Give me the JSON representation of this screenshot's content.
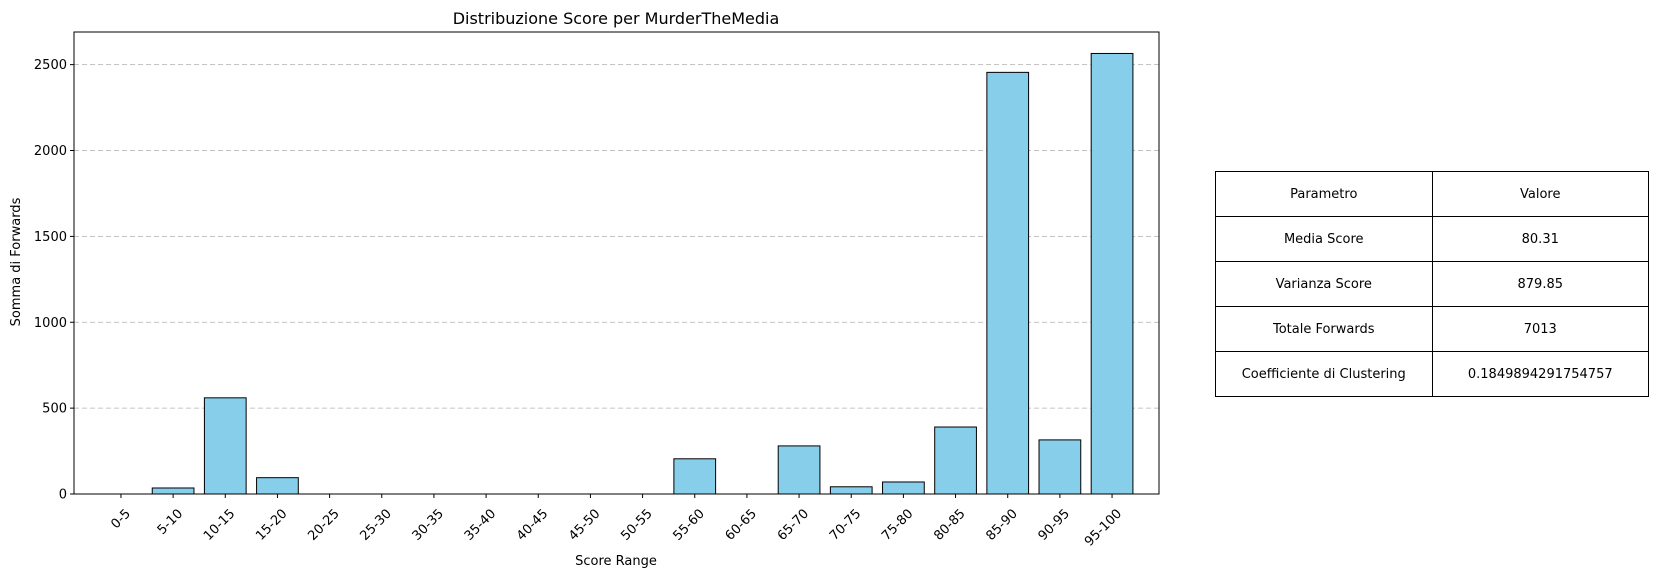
{
  "chart_data": {
    "type": "bar",
    "title": "Distribuzione Score per MurderTheMedia",
    "xlabel": "Score Range",
    "ylabel": "Somma di Forwards",
    "categories": [
      "0-5",
      "5-10",
      "10-15",
      "15-20",
      "20-25",
      "25-30",
      "30-35",
      "35-40",
      "40-45",
      "45-50",
      "50-55",
      "55-60",
      "60-65",
      "65-70",
      "70-75",
      "75-80",
      "80-85",
      "85-90",
      "90-95",
      "95-100"
    ],
    "values": [
      0,
      35,
      560,
      95,
      0,
      0,
      0,
      0,
      0,
      0,
      0,
      205,
      0,
      280,
      42,
      70,
      390,
      2455,
      315,
      2565
    ],
    "ylim": [
      0,
      2690
    ],
    "yticks": [
      0,
      500,
      1000,
      1500,
      2000,
      2500
    ],
    "grid": "y",
    "bar_color": "#87CEEB",
    "edge_color": "#000000",
    "grid_color": "#b0b0b0"
  },
  "table": {
    "header": [
      "Parametro",
      "Valore"
    ],
    "rows": [
      [
        "Media Score",
        "80.31"
      ],
      [
        "Varianza Score",
        "879.85"
      ],
      [
        "Totale Forwards",
        "7013"
      ],
      [
        "Coefficiente di Clustering",
        "0.1849894291754757"
      ]
    ]
  }
}
